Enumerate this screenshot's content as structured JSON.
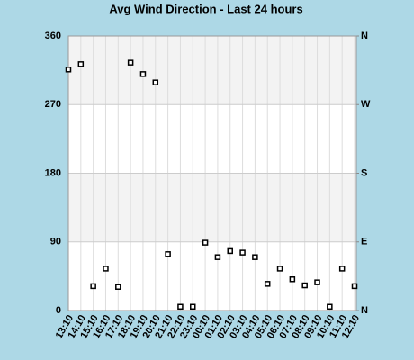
{
  "chart_data": {
    "type": "scatter",
    "title": "Avg Wind Direction - Last 24 hours",
    "categories": [
      "13:10",
      "14:10",
      "15:10",
      "16:10",
      "17:10",
      "18:10",
      "19:10",
      "20:10",
      "21:10",
      "22:10",
      "23:10",
      "00:10",
      "01:10",
      "02:10",
      "03:10",
      "04:10",
      "05:10",
      "06:10",
      "07:10",
      "08:10",
      "09:10",
      "10:10",
      "11:10",
      "12:10"
    ],
    "values": [
      316,
      323,
      32,
      55,
      31,
      325,
      310,
      299,
      74,
      5,
      5,
      89,
      70,
      78,
      76,
      70,
      35,
      55,
      41,
      33,
      37,
      5,
      55,
      32
    ],
    "color": "#000000",
    "ylim": [
      0,
      360
    ],
    "yticks": [
      0,
      90,
      180,
      270,
      360
    ],
    "y2lim": [
      0,
      360
    ],
    "y2ticks": [
      {
        "value": 0,
        "label": "N"
      },
      {
        "value": 90,
        "label": "E"
      },
      {
        "value": 180,
        "label": "S"
      },
      {
        "value": 270,
        "label": "W"
      },
      {
        "value": 360,
        "label": "N"
      }
    ],
    "grid": true,
    "band_color": "#f3f3f3"
  }
}
